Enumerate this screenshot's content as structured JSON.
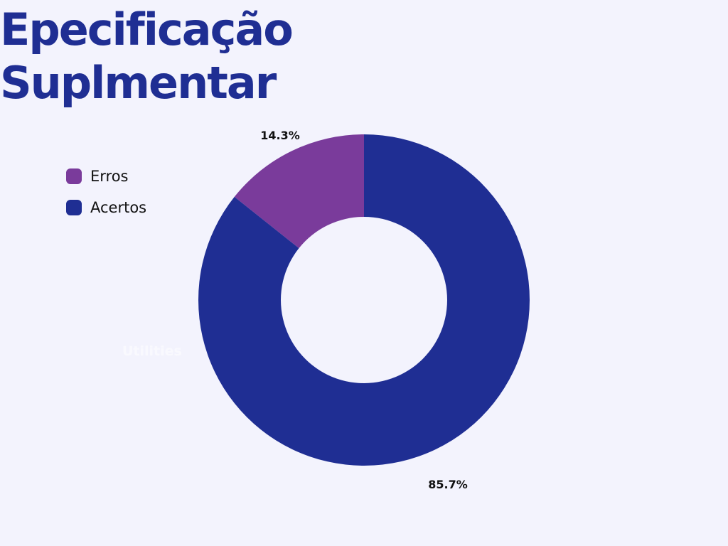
{
  "page": {
    "title_line1": "Epecificação",
    "title_line2": "Suplmentar"
  },
  "chart_data": {
    "type": "pie",
    "donut": true,
    "categories": [
      "Erros",
      "Acertos"
    ],
    "values": [
      14.3,
      85.7
    ],
    "data_labels": [
      "14.3%",
      "85.7%"
    ],
    "colors": [
      "#7a3b9b",
      "#1f2e93"
    ],
    "legend_position": "top-left",
    "extra_label": "Utilities"
  }
}
